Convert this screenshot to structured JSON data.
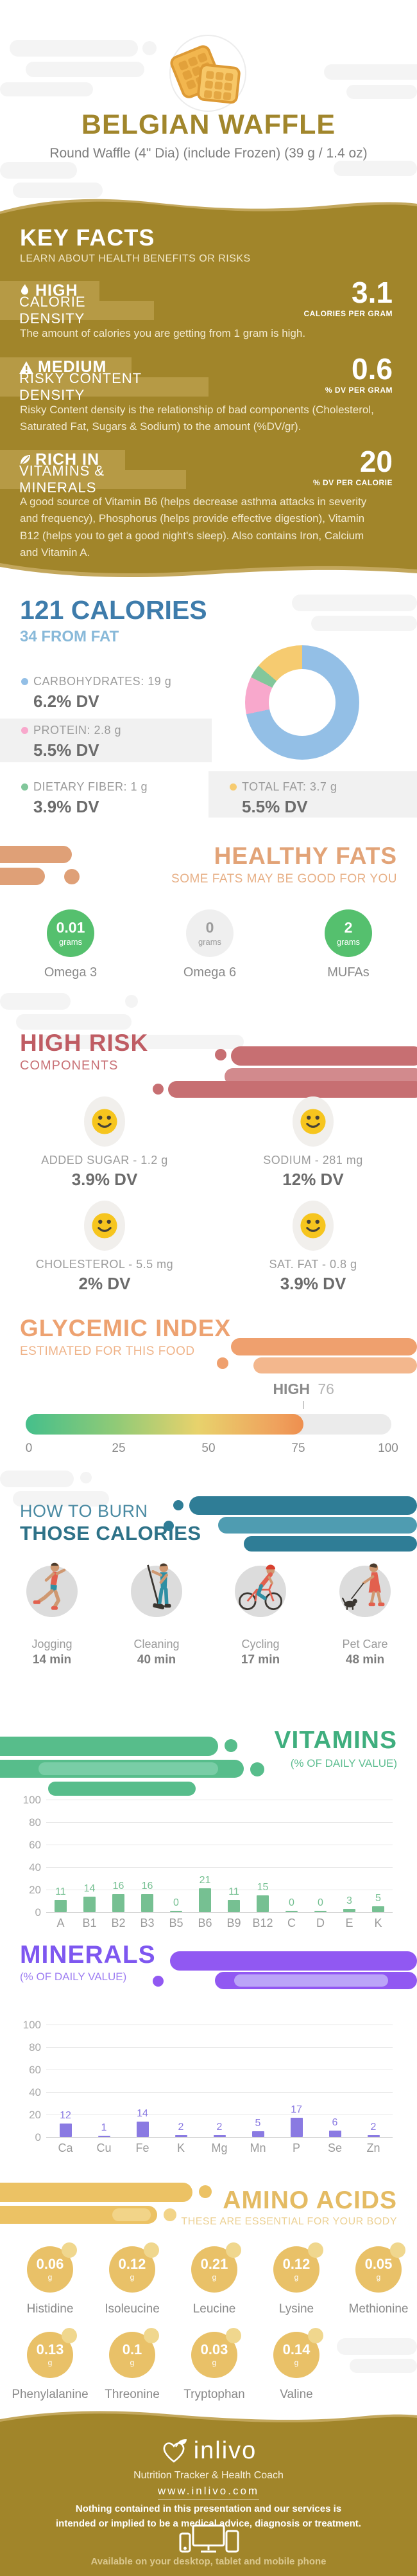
{
  "header": {
    "title": "BELGIAN WAFFLE",
    "subtitle": "Round Waffle (4\" Dia) (include Frozen) (39 g / 1.4 oz)"
  },
  "key_facts": {
    "title": "KEY FACTS",
    "subtitle": "LEARN ABOUT HEALTH BENEFITS OR RISKS",
    "facts": [
      {
        "level": "HIGH",
        "name": "CALORIE DENSITY",
        "value": "3.1",
        "unit": "CALORIES PER GRAM",
        "description": "The amount of calories you are getting from 1 gram is high."
      },
      {
        "level": "MEDIUM",
        "name": "RISKY CONTENT DENSITY",
        "value": "0.6",
        "unit": "% DV PER GRAM",
        "description": "Risky Content density is the relationship of bad components (Cholesterol, Saturated Fat, Sugars & Sodium) to the amount (%DV/gr)."
      },
      {
        "level": "RICH IN",
        "name": "VITAMINS & MINERALS",
        "value": "20",
        "unit": "% DV PER CALORIE",
        "description": "A good source of Vitamin B6 (helps decrease asthma attacks in severity and frequency), Phosphorus (helps provide effective digestion), Vitamin B12 (helps you to get a good night's sleep). Also contains Iron, Calcium and Vitamin A."
      }
    ]
  },
  "calories": {
    "title": "121 CALORIES",
    "subtitle": "34 FROM FAT",
    "macros": [
      {
        "label": "CARBOHYDRATES: 19 g",
        "dv": "6.2% DV",
        "color": "#93bfe6"
      },
      {
        "label": "PROTEIN: 2.8 g",
        "dv": "5.5% DV",
        "color": "#f8a8cc"
      },
      {
        "label": "DIETARY FIBER: 1 g",
        "dv": "3.9% DV",
        "color": "#82c79b"
      },
      {
        "label": "TOTAL FAT: 3.7 g",
        "dv": "5.5% DV",
        "color": "#f6cb70"
      }
    ]
  },
  "healthy_fats": {
    "title": "HEALTHY FATS",
    "subtitle": "SOME FATS MAY BE GOOD FOR YOU",
    "items": [
      {
        "value": "0.01",
        "unit": "grams",
        "label": "Omega 3"
      },
      {
        "value": "0",
        "unit": "grams",
        "label": "Omega 6"
      },
      {
        "value": "2",
        "unit": "grams",
        "label": "MUFAs"
      }
    ]
  },
  "high_risk": {
    "title": "HIGH RISK",
    "subtitle": "COMPONENTS",
    "items": [
      {
        "label": "ADDED SUGAR - 1.2 g",
        "dv": "3.9% DV"
      },
      {
        "label": "SODIUM - 281 mg",
        "dv": "12% DV"
      },
      {
        "label": "CHOLESTEROL - 5.5 mg",
        "dv": "2% DV"
      },
      {
        "label": "SAT. FAT - 0.8 g",
        "dv": "3.9% DV"
      }
    ]
  },
  "glycemic_index": {
    "title": "GLYCEMIC INDEX",
    "subtitle": "ESTIMATED FOR THIS FOOD",
    "level": "HIGH",
    "value": "76"
  },
  "burn": {
    "title_line1": "HOW TO BURN",
    "title_line2": "THOSE CALORIES",
    "activities": [
      {
        "label": "Jogging",
        "time": "14 min"
      },
      {
        "label": "Cleaning",
        "time": "40 min"
      },
      {
        "label": "Cycling",
        "time": "17 min"
      },
      {
        "label": "Pet Care",
        "time": "48 min"
      }
    ]
  },
  "vitamins": {
    "title": "VITAMINS",
    "subtitle": "(% OF DAILY VALUE)"
  },
  "minerals": {
    "title": "MINERALS",
    "subtitle": "(% OF DAILY VALUE)"
  },
  "amino_acids": {
    "title": "AMINO ACIDS",
    "subtitle": "THESE ARE ESSENTIAL FOR YOUR BODY",
    "unit": "g",
    "items": [
      {
        "value": "0.06",
        "label": "Histidine"
      },
      {
        "value": "0.12",
        "label": "Isoleucine"
      },
      {
        "value": "0.21",
        "label": "Leucine"
      },
      {
        "value": "0.12",
        "label": "Lysine"
      },
      {
        "value": "0.05",
        "label": "Methionine"
      },
      {
        "value": "0.13",
        "label": "Phenylalanine"
      },
      {
        "value": "0.1",
        "label": "Threonine"
      },
      {
        "value": "0.03",
        "label": "Tryptophan"
      },
      {
        "value": "0.14",
        "label": "Valine"
      }
    ]
  },
  "footer": {
    "brand": "inlivo",
    "tagline": "Nutrition Tracker & Health Coach",
    "url": "www.inlivo.com",
    "disclaimer": "Nothing contained in this presentation and our services is intended or implied to be a medical advice, diagnosis or treatment.",
    "availability": "Available on your desktop, tablet and mobile phone"
  },
  "colors": {
    "gold": "#a1852a",
    "gold_light": "#b69a45",
    "tan": "#c3a75c",
    "blue_heading": "#3e7cab",
    "salmon": "#e2a377",
    "red": "#bf5c63",
    "teal": "#2e7288",
    "green": "#3fae7e",
    "purple": "#7e57f0",
    "amber": "#e4bb63"
  },
  "chart_data": [
    {
      "type": "pie",
      "title": "Calorie composition donut",
      "labels": [
        "Carbohydrates",
        "Protein",
        "Dietary Fiber",
        "Total Fat"
      ],
      "values_pct": [
        71.7,
        10.6,
        3.8,
        13.9
      ],
      "colors": [
        "#93bfe6",
        "#f8a8cc",
        "#82c79b",
        "#f6cb70"
      ],
      "legend_position": "left",
      "grid": false
    },
    {
      "type": "gauge",
      "title": "Glycemic Index",
      "value": 76,
      "range": [
        0,
        100
      ],
      "level": "HIGH",
      "ticks": [
        0,
        25,
        50,
        75,
        100
      ]
    },
    {
      "type": "bar",
      "title": "Vitamins (% of Daily Value)",
      "categories": [
        "A",
        "B1",
        "B2",
        "B3",
        "B5",
        "B6",
        "B9",
        "B12",
        "C",
        "D",
        "E",
        "K"
      ],
      "values": [
        11,
        14,
        16,
        16,
        0,
        21,
        11,
        15,
        0,
        0,
        3,
        5
      ],
      "ylim": [
        0,
        100
      ],
      "yticks": [
        0,
        20,
        40,
        60,
        80,
        100
      ],
      "grid": true,
      "bar_color": "#76c092"
    },
    {
      "type": "bar",
      "title": "Minerals (% of Daily Value)",
      "categories": [
        "Ca",
        "Cu",
        "Fe",
        "K",
        "Mg",
        "Mn",
        "P",
        "Se",
        "Zn"
      ],
      "values": [
        12,
        1,
        14,
        2,
        2,
        5,
        17,
        6,
        2
      ],
      "ylim": [
        0,
        100
      ],
      "yticks": [
        0,
        20,
        40,
        60,
        80,
        100
      ],
      "grid": true,
      "bar_color": "#8a7ae2"
    }
  ]
}
